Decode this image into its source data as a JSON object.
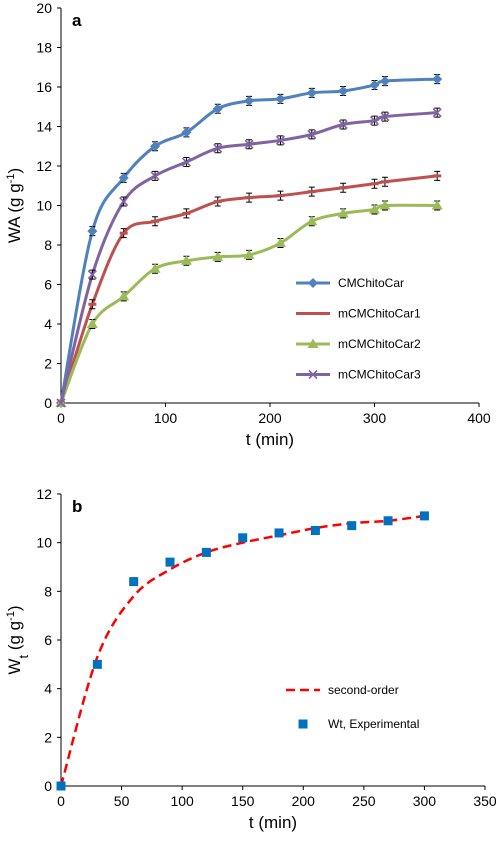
{
  "chart_data": [
    {
      "type": "line",
      "panel_label": "a",
      "xlabel": "t (min)",
      "ylabel": "WA (g g-1)",
      "xlim": [
        0,
        400
      ],
      "ylim": [
        0,
        20
      ],
      "x_ticks": [
        "0",
        "100",
        "200",
        "300",
        "400"
      ],
      "y_ticks": [
        "0",
        "2",
        "4",
        "6",
        "8",
        "10",
        "12",
        "14",
        "16",
        "18",
        "20"
      ],
      "x": [
        0,
        30,
        60,
        90,
        120,
        150,
        180,
        210,
        240,
        270,
        300,
        310,
        360
      ],
      "legend_position": "center-right",
      "grid": false,
      "series": [
        {
          "name": "CMChitoCar",
          "color": "#4f81bd",
          "marker": "diamond",
          "values": [
            0,
            8.7,
            11.4,
            13.0,
            13.7,
            14.9,
            15.3,
            15.4,
            15.7,
            15.8,
            16.1,
            16.3,
            16.4
          ]
        },
        {
          "name": "mCMChitoCar1",
          "color": "#c0504d",
          "marker": "dash",
          "values": [
            0,
            5.0,
            8.6,
            9.2,
            9.6,
            10.2,
            10.4,
            10.5,
            10.7,
            10.9,
            11.1,
            11.2,
            11.5
          ]
        },
        {
          "name": "mCMChitoCar2",
          "color": "#9bbb59",
          "marker": "triangle",
          "values": [
            0,
            4.0,
            5.4,
            6.8,
            7.2,
            7.4,
            7.5,
            8.1,
            9.2,
            9.6,
            9.8,
            10.0,
            10.0
          ]
        },
        {
          "name": "mCMChitoCar3",
          "color": "#8064a2",
          "marker": "x",
          "values": [
            0,
            6.5,
            10.2,
            11.5,
            12.2,
            12.9,
            13.1,
            13.3,
            13.6,
            14.1,
            14.3,
            14.5,
            14.7
          ]
        }
      ]
    },
    {
      "type": "scatter",
      "panel_label": "b",
      "xlabel": "t (min)",
      "ylabel": "Wt (g g-1)",
      "xlim": [
        0,
        350
      ],
      "ylim": [
        0,
        12
      ],
      "x_ticks": [
        "0",
        "50",
        "100",
        "150",
        "200",
        "250",
        "300",
        "350"
      ],
      "y_ticks": [
        "0",
        "2",
        "4",
        "6",
        "8",
        "10",
        "12"
      ],
      "legend_position": "lower-right",
      "grid": false,
      "series": [
        {
          "name": "second-order",
          "color": "#ff0000",
          "style": "dashed",
          "x": [
            0,
            30,
            60,
            90,
            120,
            150,
            180,
            210,
            240,
            270,
            300
          ],
          "values": [
            0,
            5.3,
            7.8,
            8.9,
            9.6,
            10.0,
            10.3,
            10.6,
            10.8,
            10.9,
            11.1
          ]
        },
        {
          "name": "Wt, Experimental",
          "color": "#0070c0",
          "marker": "square",
          "x": [
            0,
            30,
            60,
            90,
            120,
            150,
            180,
            210,
            240,
            270,
            300
          ],
          "values": [
            0,
            5.0,
            8.4,
            9.2,
            9.6,
            10.2,
            10.4,
            10.5,
            10.7,
            10.9,
            11.1
          ]
        }
      ]
    }
  ]
}
